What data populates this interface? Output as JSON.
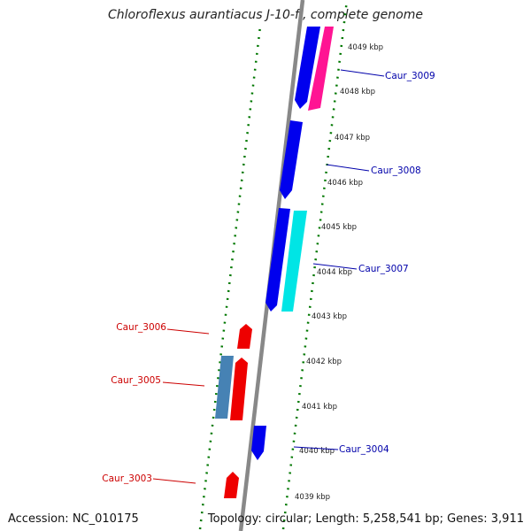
{
  "title": "Chloroflexus aurantiacus J-10-fl, complete genome",
  "accession": "Accession: NC_010175",
  "summary": "Topology: circular; Length: 5,258,541 bp; Genes: 3,911",
  "colors": {
    "backbone": "#888888",
    "ruler": "#007700",
    "forward_gene": "#0000ee",
    "reverse_gene": "#ee0000",
    "forward_label": "#0000aa",
    "reverse_label": "#cc0000",
    "magenta": "#ff1493",
    "cyan": "#00e5e5",
    "steelblue": "#4682b4"
  },
  "ruler_ticks": [
    "4039 kbp",
    "4040 kbp",
    "4041 kbp",
    "4042 kbp",
    "4043 kbp",
    "4044 kbp",
    "4045 kbp",
    "4046 kbp",
    "4047 kbp",
    "4048 kbp",
    "4049 kbp"
  ],
  "gene_labels": [
    {
      "id": "Caur_3009",
      "strand": "forward"
    },
    {
      "id": "Caur_3008",
      "strand": "forward"
    },
    {
      "id": "Caur_3007",
      "strand": "forward"
    },
    {
      "id": "Caur_3006",
      "strand": "reverse"
    },
    {
      "id": "Caur_3005",
      "strand": "reverse"
    },
    {
      "id": "Caur_3004",
      "strand": "forward"
    },
    {
      "id": "Caur_3003",
      "strand": "reverse"
    }
  ]
}
